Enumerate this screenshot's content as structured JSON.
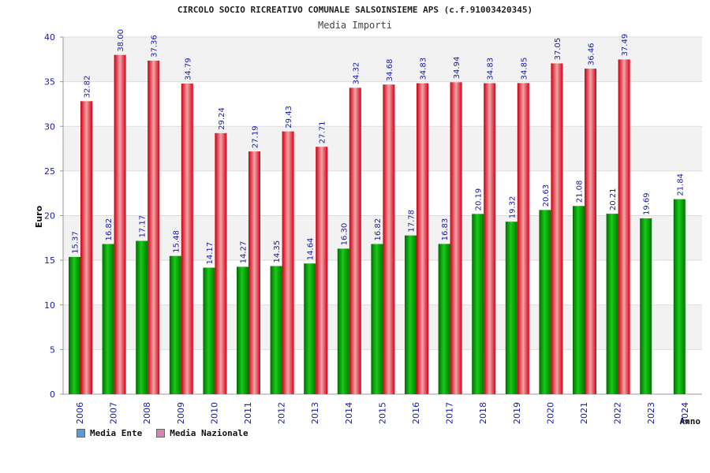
{
  "chart_data": {
    "type": "bar",
    "title": "CIRCOLO SOCIO RICREATIVO COMUNALE SALSOINSIEME APS (c.f.91003420345)",
    "subtitle": "Media Importi",
    "ylabel": "Euro",
    "xlabel": "Anno",
    "ylim": [
      0,
      40
    ],
    "yticks": [
      0,
      5,
      10,
      15,
      20,
      25,
      30,
      35,
      40
    ],
    "categories": [
      "2006",
      "2007",
      "2008",
      "2009",
      "2010",
      "2011",
      "2012",
      "2013",
      "2014",
      "2015",
      "2016",
      "2017",
      "2018",
      "2019",
      "2020",
      "2021",
      "2022",
      "2023",
      "2024"
    ],
    "series": [
      {
        "name": "Media Ente",
        "color": "#00b000",
        "values": [
          15.37,
          16.82,
          17.17,
          15.48,
          14.17,
          14.27,
          14.35,
          14.64,
          16.3,
          16.82,
          17.78,
          16.83,
          20.19,
          19.32,
          20.63,
          21.08,
          20.21,
          19.69,
          21.84
        ]
      },
      {
        "name": "Media Nazionale",
        "color": "#e8202a",
        "values": [
          32.82,
          38.0,
          37.36,
          34.79,
          29.24,
          27.19,
          29.43,
          27.71,
          34.32,
          34.68,
          34.83,
          34.94,
          34.83,
          34.85,
          37.05,
          36.46,
          37.49,
          null,
          null
        ]
      }
    ],
    "legend": {
      "position": "bottom-left",
      "swatch_colors": [
        "#5b9bd5",
        "#d884b0"
      ]
    },
    "grid": true
  }
}
